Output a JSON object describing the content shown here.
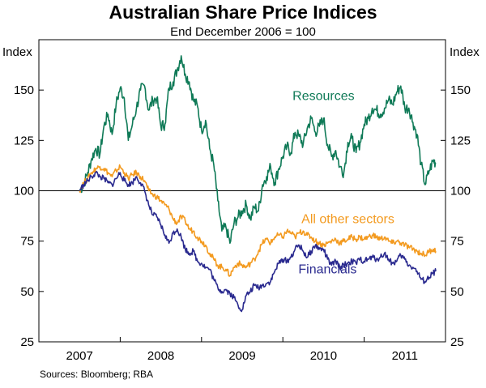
{
  "chart_data": {
    "type": "line",
    "title": "Australian Share Price Indices",
    "subtitle": "End December 2006 = 100",
    "ylabel_left": "Index",
    "ylabel_right": "Index",
    "ylim": [
      25,
      175
    ],
    "yticks": [
      25,
      50,
      75,
      100,
      125,
      150
    ],
    "xlim": [
      2006.5,
      2011.5
    ],
    "xticks": [
      {
        "label": "2007",
        "pos": 2007
      },
      {
        "label": "2008",
        "pos": 2008
      },
      {
        "label": "2009",
        "pos": 2009
      },
      {
        "label": "2010",
        "pos": 2010
      },
      {
        "label": "2011",
        "pos": 2011
      }
    ],
    "reference_line": 100,
    "source": "Sources: Bloomberg; RBA",
    "series": [
      {
        "name": "Resources",
        "color": "#0f7a57",
        "points": [
          [
            2007.0,
            100
          ],
          [
            2007.05,
            103
          ],
          [
            2007.1,
            109
          ],
          [
            2007.15,
            116
          ],
          [
            2007.2,
            121
          ],
          [
            2007.25,
            118
          ],
          [
            2007.3,
            132
          ],
          [
            2007.35,
            138
          ],
          [
            2007.4,
            128
          ],
          [
            2007.45,
            143
          ],
          [
            2007.5,
            151
          ],
          [
            2007.55,
            146
          ],
          [
            2007.6,
            125
          ],
          [
            2007.65,
            133
          ],
          [
            2007.7,
            141
          ],
          [
            2007.75,
            150
          ],
          [
            2007.8,
            152
          ],
          [
            2007.85,
            140
          ],
          [
            2007.9,
            145
          ],
          [
            2007.95,
            146
          ],
          [
            2008.0,
            132
          ],
          [
            2008.05,
            133
          ],
          [
            2008.1,
            151
          ],
          [
            2008.15,
            154
          ],
          [
            2008.2,
            160
          ],
          [
            2008.25,
            167
          ],
          [
            2008.3,
            158
          ],
          [
            2008.35,
            154
          ],
          [
            2008.4,
            145
          ],
          [
            2008.45,
            142
          ],
          [
            2008.5,
            130
          ],
          [
            2008.55,
            135
          ],
          [
            2008.6,
            121
          ],
          [
            2008.65,
            113
          ],
          [
            2008.7,
            95
          ],
          [
            2008.75,
            80
          ],
          [
            2008.8,
            82
          ],
          [
            2008.85,
            74
          ],
          [
            2008.9,
            84
          ],
          [
            2008.95,
            87
          ],
          [
            2009.0,
            90
          ],
          [
            2009.05,
            93
          ],
          [
            2009.1,
            86
          ],
          [
            2009.15,
            92
          ],
          [
            2009.2,
            90
          ],
          [
            2009.25,
            103
          ],
          [
            2009.3,
            107
          ],
          [
            2009.35,
            112
          ],
          [
            2009.4,
            104
          ],
          [
            2009.45,
            111
          ],
          [
            2009.5,
            117
          ],
          [
            2009.55,
            122
          ],
          [
            2009.6,
            119
          ],
          [
            2009.65,
            129
          ],
          [
            2009.7,
            127
          ],
          [
            2009.75,
            123
          ],
          [
            2009.8,
            131
          ],
          [
            2009.85,
            136
          ],
          [
            2009.9,
            129
          ],
          [
            2009.95,
            132
          ],
          [
            2010.0,
            136
          ],
          [
            2010.05,
            123
          ],
          [
            2010.1,
            117
          ],
          [
            2010.15,
            120
          ],
          [
            2010.2,
            112
          ],
          [
            2010.25,
            109
          ],
          [
            2010.3,
            124
          ],
          [
            2010.35,
            126
          ],
          [
            2010.4,
            119
          ],
          [
            2010.45,
            124
          ],
          [
            2010.5,
            133
          ],
          [
            2010.55,
            136
          ],
          [
            2010.6,
            141
          ],
          [
            2010.65,
            140
          ],
          [
            2010.7,
            138
          ],
          [
            2010.75,
            141
          ],
          [
            2010.8,
            145
          ],
          [
            2010.85,
            143
          ],
          [
            2010.9,
            149
          ],
          [
            2010.95,
            152
          ],
          [
            2011.0,
            141
          ],
          [
            2011.05,
            141
          ],
          [
            2011.1,
            134
          ],
          [
            2011.15,
            128
          ],
          [
            2011.2,
            113
          ],
          [
            2011.25,
            103
          ],
          [
            2011.3,
            110
          ],
          [
            2011.35,
            115
          ],
          [
            2011.38,
            114
          ]
        ]
      },
      {
        "name": "All other sectors",
        "color": "#f39a1f",
        "points": [
          [
            2007.0,
            100
          ],
          [
            2007.05,
            104
          ],
          [
            2007.1,
            106
          ],
          [
            2007.15,
            109
          ],
          [
            2007.2,
            111
          ],
          [
            2007.25,
            112
          ],
          [
            2007.3,
            111
          ],
          [
            2007.35,
            109
          ],
          [
            2007.4,
            107
          ],
          [
            2007.45,
            110
          ],
          [
            2007.5,
            112
          ],
          [
            2007.55,
            109
          ],
          [
            2007.6,
            106
          ],
          [
            2007.65,
            108
          ],
          [
            2007.7,
            109
          ],
          [
            2007.75,
            107
          ],
          [
            2007.8,
            105
          ],
          [
            2007.85,
            100
          ],
          [
            2007.9,
            98
          ],
          [
            2007.95,
            97
          ],
          [
            2008.0,
            95
          ],
          [
            2008.05,
            93
          ],
          [
            2008.1,
            91
          ],
          [
            2008.15,
            86
          ],
          [
            2008.2,
            84
          ],
          [
            2008.25,
            87
          ],
          [
            2008.3,
            85
          ],
          [
            2008.35,
            81
          ],
          [
            2008.4,
            80
          ],
          [
            2008.45,
            77
          ],
          [
            2008.5,
            75
          ],
          [
            2008.55,
            73
          ],
          [
            2008.6,
            69
          ],
          [
            2008.65,
            66
          ],
          [
            2008.7,
            63
          ],
          [
            2008.75,
            62
          ],
          [
            2008.8,
            61
          ],
          [
            2008.85,
            58
          ],
          [
            2008.9,
            62
          ],
          [
            2008.95,
            64
          ],
          [
            2009.0,
            63
          ],
          [
            2009.05,
            62
          ],
          [
            2009.1,
            64
          ],
          [
            2009.15,
            66
          ],
          [
            2009.2,
            70
          ],
          [
            2009.25,
            74
          ],
          [
            2009.3,
            76
          ],
          [
            2009.35,
            74
          ],
          [
            2009.4,
            77
          ],
          [
            2009.45,
            78
          ],
          [
            2009.5,
            77
          ],
          [
            2009.55,
            80
          ],
          [
            2009.6,
            79
          ],
          [
            2009.65,
            77
          ],
          [
            2009.7,
            79
          ],
          [
            2009.75,
            80
          ],
          [
            2009.8,
            78
          ],
          [
            2009.85,
            77
          ],
          [
            2009.9,
            75
          ],
          [
            2009.95,
            74
          ],
          [
            2010.0,
            73
          ],
          [
            2010.05,
            74
          ],
          [
            2010.1,
            75
          ],
          [
            2010.15,
            76
          ],
          [
            2010.2,
            74
          ],
          [
            2010.25,
            75
          ],
          [
            2010.3,
            76
          ],
          [
            2010.35,
            77
          ],
          [
            2010.4,
            76
          ],
          [
            2010.45,
            77
          ],
          [
            2010.5,
            76
          ],
          [
            2010.55,
            77
          ],
          [
            2010.6,
            78
          ],
          [
            2010.65,
            77
          ],
          [
            2010.7,
            76
          ],
          [
            2010.75,
            77
          ],
          [
            2010.8,
            75
          ],
          [
            2010.85,
            74
          ],
          [
            2010.9,
            75
          ],
          [
            2010.95,
            74
          ],
          [
            2011.0,
            73
          ],
          [
            2011.05,
            72
          ],
          [
            2011.1,
            71
          ],
          [
            2011.15,
            70
          ],
          [
            2011.2,
            69
          ],
          [
            2011.25,
            68
          ],
          [
            2011.3,
            70
          ],
          [
            2011.35,
            71
          ],
          [
            2011.38,
            70
          ]
        ]
      },
      {
        "name": "Financials",
        "color": "#2a2a8f",
        "points": [
          [
            2007.0,
            100
          ],
          [
            2007.05,
            103
          ],
          [
            2007.1,
            105
          ],
          [
            2007.15,
            107
          ],
          [
            2007.2,
            109
          ],
          [
            2007.25,
            107
          ],
          [
            2007.3,
            106
          ],
          [
            2007.35,
            104
          ],
          [
            2007.4,
            103
          ],
          [
            2007.45,
            106
          ],
          [
            2007.5,
            109
          ],
          [
            2007.55,
            105
          ],
          [
            2007.6,
            103
          ],
          [
            2007.65,
            104
          ],
          [
            2007.7,
            107
          ],
          [
            2007.75,
            104
          ],
          [
            2007.8,
            100
          ],
          [
            2007.85,
            93
          ],
          [
            2007.9,
            88
          ],
          [
            2007.95,
            87
          ],
          [
            2008.0,
            83
          ],
          [
            2008.05,
            78
          ],
          [
            2008.1,
            74
          ],
          [
            2008.15,
            79
          ],
          [
            2008.2,
            81
          ],
          [
            2008.25,
            77
          ],
          [
            2008.3,
            71
          ],
          [
            2008.35,
            69
          ],
          [
            2008.4,
            70
          ],
          [
            2008.45,
            65
          ],
          [
            2008.5,
            64
          ],
          [
            2008.55,
            62
          ],
          [
            2008.6,
            61
          ],
          [
            2008.65,
            56
          ],
          [
            2008.7,
            52
          ],
          [
            2008.75,
            50
          ],
          [
            2008.8,
            51
          ],
          [
            2008.85,
            49
          ],
          [
            2008.9,
            47
          ],
          [
            2008.95,
            43
          ],
          [
            2009.0,
            41
          ],
          [
            2009.05,
            48
          ],
          [
            2009.1,
            50
          ],
          [
            2009.15,
            53
          ],
          [
            2009.2,
            52
          ],
          [
            2009.25,
            53
          ],
          [
            2009.3,
            54
          ],
          [
            2009.35,
            55
          ],
          [
            2009.4,
            60
          ],
          [
            2009.45,
            64
          ],
          [
            2009.5,
            66
          ],
          [
            2009.55,
            65
          ],
          [
            2009.6,
            67
          ],
          [
            2009.65,
            71
          ],
          [
            2009.7,
            73
          ],
          [
            2009.75,
            70
          ],
          [
            2009.8,
            67
          ],
          [
            2009.85,
            70
          ],
          [
            2009.9,
            73
          ],
          [
            2009.95,
            71
          ],
          [
            2010.0,
            71
          ],
          [
            2010.05,
            66
          ],
          [
            2010.1,
            63
          ],
          [
            2010.15,
            65
          ],
          [
            2010.2,
            62
          ],
          [
            2010.25,
            63
          ],
          [
            2010.3,
            64
          ],
          [
            2010.35,
            65
          ],
          [
            2010.4,
            64
          ],
          [
            2010.45,
            66
          ],
          [
            2010.5,
            65
          ],
          [
            2010.55,
            66
          ],
          [
            2010.6,
            67
          ],
          [
            2010.65,
            66
          ],
          [
            2010.7,
            67
          ],
          [
            2010.75,
            69
          ],
          [
            2010.8,
            66
          ],
          [
            2010.85,
            64
          ],
          [
            2010.9,
            65
          ],
          [
            2010.95,
            68
          ],
          [
            2011.0,
            66
          ],
          [
            2011.05,
            63
          ],
          [
            2011.1,
            62
          ],
          [
            2011.15,
            60
          ],
          [
            2011.2,
            56
          ],
          [
            2011.25,
            55
          ],
          [
            2011.3,
            57
          ],
          [
            2011.35,
            59
          ],
          [
            2011.38,
            60
          ]
        ]
      }
    ],
    "annotations": [
      {
        "text": "Resources",
        "series": "Resources",
        "x": 2010.0,
        "y": 145
      },
      {
        "text": "All other sectors",
        "series": "All other sectors",
        "x": 2010.3,
        "y": 84
      },
      {
        "text": "Financials",
        "series": "Financials",
        "x": 2010.05,
        "y": 59
      }
    ]
  }
}
